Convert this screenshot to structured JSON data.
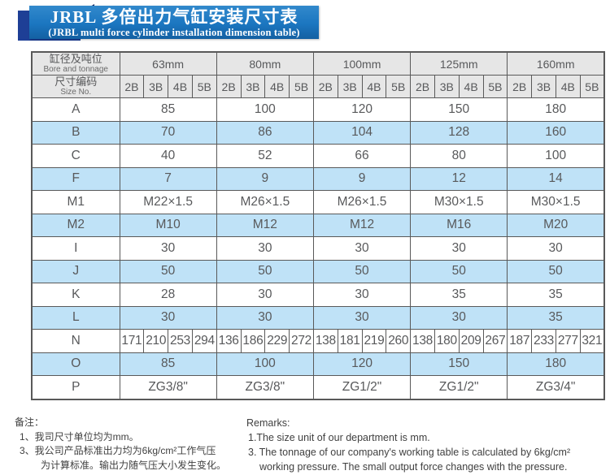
{
  "banner": {
    "title_zh": "JRBL 多倍出力气缸安装尺寸表",
    "title_en": "(JRBL multi force cylinder installation dimension table)"
  },
  "table": {
    "header": {
      "bore_zh": "缸径及吨位",
      "bore_en": "Bore and tonnage",
      "size_zh": "尺寸编码",
      "size_en": "Size No.",
      "bores": [
        "63mm",
        "80mm",
        "100mm",
        "125mm",
        "160mm"
      ],
      "size_codes": [
        "2B",
        "3B",
        "4B",
        "5B"
      ]
    },
    "rows": [
      {
        "label": "A",
        "shaded": false,
        "values": [
          "85",
          "100",
          "120",
          "150",
          "180"
        ]
      },
      {
        "label": "B",
        "shaded": true,
        "values": [
          "70",
          "86",
          "104",
          "128",
          "160"
        ]
      },
      {
        "label": "C",
        "shaded": false,
        "values": [
          "40",
          "52",
          "66",
          "80",
          "100"
        ]
      },
      {
        "label": "F",
        "shaded": true,
        "values": [
          "7",
          "9",
          "9",
          "12",
          "14"
        ]
      },
      {
        "label": "M1",
        "shaded": false,
        "values": [
          "M22×1.5",
          "M26×1.5",
          "M26×1.5",
          "M30×1.5",
          "M30×1.5"
        ]
      },
      {
        "label": "M2",
        "shaded": true,
        "values": [
          "M10",
          "M12",
          "M12",
          "M16",
          "M20"
        ]
      },
      {
        "label": "I",
        "shaded": false,
        "values": [
          "30",
          "30",
          "30",
          "30",
          "30"
        ]
      },
      {
        "label": "J",
        "shaded": true,
        "values": [
          "50",
          "50",
          "50",
          "50",
          "50"
        ]
      },
      {
        "label": "K",
        "shaded": false,
        "values": [
          "28",
          "30",
          "30",
          "35",
          "35"
        ]
      },
      {
        "label": "L",
        "shaded": true,
        "values": [
          "30",
          "30",
          "30",
          "30",
          "35"
        ]
      },
      {
        "label": "N",
        "shaded": false,
        "subvalues": [
          [
            "171",
            "210",
            "253",
            "294"
          ],
          [
            "136",
            "186",
            "229",
            "272"
          ],
          [
            "138",
            "181",
            "219",
            "260"
          ],
          [
            "138",
            "180",
            "209",
            "267"
          ],
          [
            "187",
            "233",
            "277",
            "321"
          ]
        ]
      },
      {
        "label": "O",
        "shaded": true,
        "values": [
          "85",
          "100",
          "120",
          "150",
          "180"
        ]
      },
      {
        "label": "P",
        "shaded": false,
        "values": [
          "ZG3/8\"",
          "ZG3/8\"",
          "ZG1/2\"",
          "ZG1/2\"",
          "ZG3/4\""
        ]
      }
    ]
  },
  "notes_zh": {
    "heading": "备注：",
    "lines": [
      {
        "text": "1、我司尺寸单位均为mm。",
        "indent": false
      },
      {
        "text": "3、我公司产品标准出力均为6kg/cm²工作气压",
        "indent": false
      },
      {
        "text": "为计算标准。输出力随气压大小发生变化。",
        "indent": true
      }
    ]
  },
  "notes_en": {
    "heading": "Remarks:",
    "lines": [
      {
        "text": "1.The size unit of our department is mm.",
        "indent": false
      },
      {
        "text": "3. The tonnage of our company's working table is calculated by 6kg/cm²",
        "indent": false
      },
      {
        "text": "working pressure. The small output force changes with the pressure.",
        "indent": true
      }
    ]
  },
  "colors": {
    "banner_blue": "#1b76c0",
    "ribbon_navy": "#1e3f96",
    "ribbon_fold": "#0f2b66",
    "header_gray": "#e6e6e6",
    "row_shade_blue": "#bfe2f7",
    "table_border": "#595959",
    "table_text": "#58595b"
  }
}
